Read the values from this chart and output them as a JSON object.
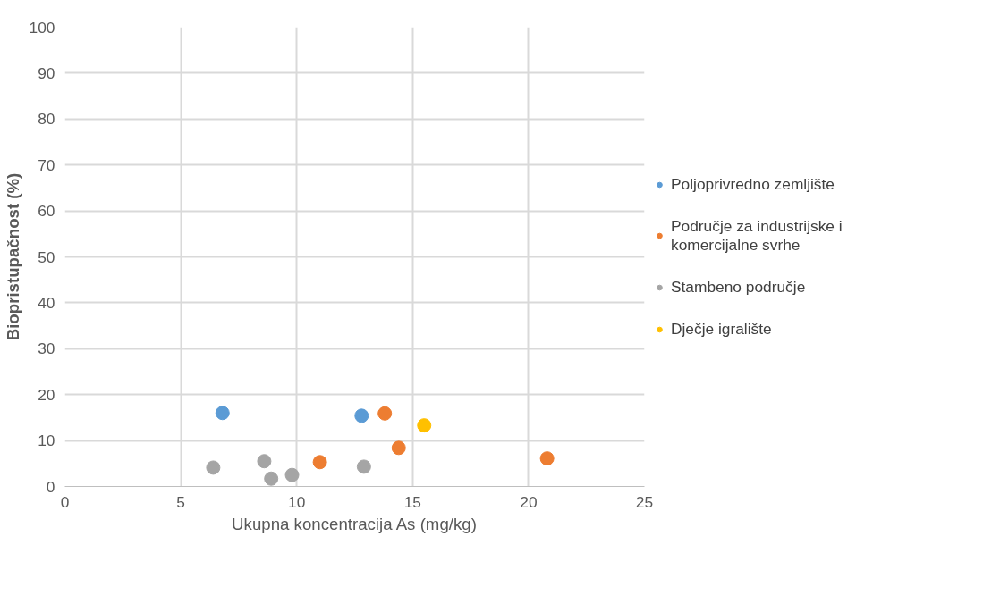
{
  "chart_data": {
    "type": "scatter",
    "xlabel": "Ukupna koncentracija As (mg/kg)",
    "ylabel": "Biopristupačnost (%)",
    "xlim": [
      0,
      25
    ],
    "xticks": [
      0,
      5,
      10,
      15,
      20,
      25
    ],
    "ylim": [
      0,
      100
    ],
    "yticks": [
      0,
      10,
      20,
      30,
      40,
      50,
      60,
      70,
      80,
      90,
      100
    ],
    "grid": true,
    "legend": "right",
    "marker": "circle",
    "series": [
      {
        "name": "Poljoprivredno zemljište",
        "color": "#5b9bd5",
        "x": [
          6.8,
          12.8
        ],
        "values": [
          16.0,
          15.4
        ]
      },
      {
        "name": "Područje za industrijske i komercijalne svrhe",
        "color": "#ed7d31",
        "x": [
          13.8,
          14.4,
          20.8,
          11.0
        ],
        "values": [
          15.9,
          8.4,
          6.1,
          5.3
        ]
      },
      {
        "name": "Stambeno područje",
        "color": "#a5a5a5",
        "x": [
          6.4,
          8.6,
          8.9,
          9.8,
          12.9
        ],
        "values": [
          4.1,
          5.5,
          1.7,
          2.5,
          4.3
        ]
      },
      {
        "name": "Dječje igralište",
        "color": "#ffc000",
        "x": [
          15.5
        ],
        "values": [
          13.3
        ]
      }
    ]
  }
}
